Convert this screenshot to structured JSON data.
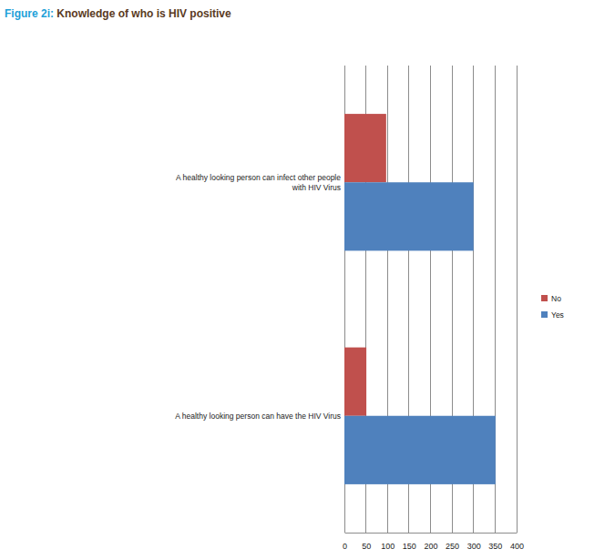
{
  "chart_data": {
    "type": "bar",
    "orientation": "horizontal",
    "title": "Figure 2i: Knowledge of who is HIV positive",
    "categories": [
      "A healthy looking person can infect other people with HIV Virus",
      "A healthy looking person can have the HIV Virus"
    ],
    "series": [
      {
        "name": "No",
        "color": "#c0504d",
        "values": [
          97,
          51
        ]
      },
      {
        "name": "Yes",
        "color": "#4f81bd",
        "values": [
          300,
          351
        ]
      }
    ],
    "xlim": [
      0,
      400
    ],
    "xticks": [
      0,
      50,
      100,
      150,
      200,
      250,
      300,
      350,
      400
    ],
    "grid": true,
    "legend": "right"
  }
}
